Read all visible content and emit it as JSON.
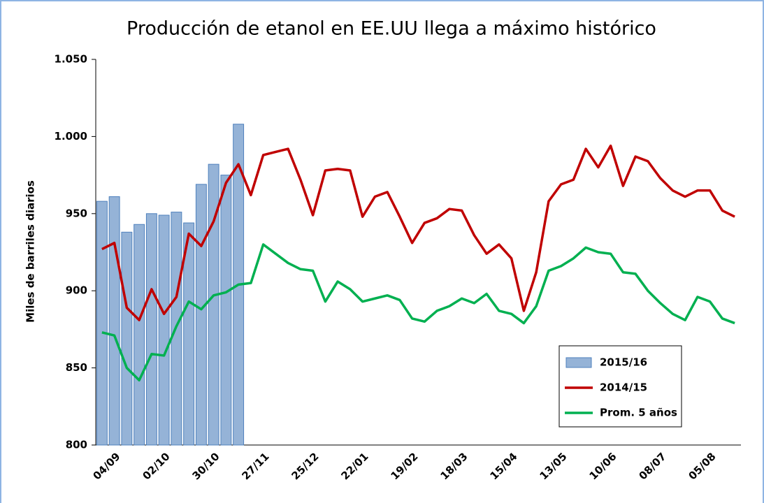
{
  "chart_data": {
    "type": "combo",
    "title": "Producción de etanol en EE.UU llega a máximo histórico",
    "y_label": "Miles de barriles diarios",
    "categories": [
      null,
      "04/09",
      null,
      null,
      null,
      "02/10",
      null,
      null,
      null,
      "30/10",
      null,
      null,
      null,
      "27/11",
      null,
      null,
      null,
      "25/12",
      null,
      null,
      null,
      "22/01",
      null,
      null,
      null,
      "19/02",
      null,
      null,
      null,
      "18/03",
      null,
      null,
      null,
      "15/04",
      null,
      null,
      null,
      "13/05",
      null,
      null,
      null,
      "10/06",
      null,
      null,
      null,
      "08/07",
      null,
      null,
      null,
      "05/08",
      null,
      null
    ],
    "series": [
      {
        "name": "2015/16",
        "type": "bar",
        "color": "#95b3d7",
        "values": [
          958,
          961,
          938,
          943,
          950,
          949,
          951,
          944,
          969,
          982,
          975,
          1008,
          null,
          null,
          null,
          null,
          null,
          null,
          null,
          null,
          null,
          null,
          null,
          null,
          null,
          null,
          null,
          null,
          null,
          null,
          null,
          null,
          null,
          null,
          null,
          null,
          null,
          null,
          null,
          null,
          null,
          null,
          null,
          null,
          null,
          null,
          null,
          null,
          null,
          null,
          null,
          null
        ]
      },
      {
        "name": "2014/15",
        "type": "line",
        "color": "#c00000",
        "values": [
          927,
          931,
          889,
          881,
          901,
          885,
          896,
          937,
          929,
          945,
          970,
          982,
          962,
          988,
          990,
          992,
          972,
          949,
          978,
          979,
          978,
          948,
          961,
          964,
          948,
          931,
          944,
          947,
          953,
          952,
          936,
          924,
          930,
          921,
          887,
          912,
          958,
          969,
          972,
          992,
          980,
          994,
          968,
          987,
          984,
          973,
          965,
          961,
          965,
          965,
          952,
          948
        ]
      },
      {
        "name": "Prom. 5 años",
        "type": "line",
        "color": "#00b050",
        "values": [
          873,
          871,
          850,
          842,
          859,
          858,
          877,
          893,
          888,
          897,
          899,
          904,
          905,
          930,
          924,
          918,
          914,
          913,
          893,
          906,
          901,
          893,
          895,
          897,
          894,
          882,
          880,
          887,
          890,
          895,
          892,
          898,
          887,
          885,
          879,
          890,
          913,
          916,
          921,
          928,
          925,
          924,
          912,
          911,
          900,
          892,
          885,
          881,
          896,
          893,
          882,
          879
        ]
      }
    ],
    "ylim": [
      800,
      1050
    ],
    "yticks": [
      {
        "value": 800,
        "label": "800"
      },
      {
        "value": 850,
        "label": "850"
      },
      {
        "value": 900,
        "label": "900"
      },
      {
        "value": 950,
        "label": "950"
      },
      {
        "value": 1000,
        "label": "1.000"
      },
      {
        "value": 1050,
        "label": "1.050"
      }
    ],
    "grid": false,
    "legend": "lower right"
  }
}
